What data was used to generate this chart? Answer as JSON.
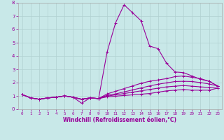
{
  "xlabel": "Windchill (Refroidissement éolien,°C)",
  "ylabel": "",
  "xlim": [
    -0.5,
    23.5
  ],
  "ylim": [
    0,
    8
  ],
  "xticks": [
    0,
    1,
    2,
    3,
    4,
    5,
    6,
    7,
    8,
    9,
    10,
    11,
    12,
    13,
    14,
    15,
    16,
    17,
    18,
    19,
    20,
    21,
    22,
    23
  ],
  "yticks": [
    0,
    1,
    2,
    3,
    4,
    5,
    6,
    7,
    8
  ],
  "bg_color": "#c8e8e8",
  "line_color": "#990099",
  "grid_color": "#b0d0d0",
  "lines": [
    [
      1.1,
      0.85,
      0.75,
      0.85,
      0.9,
      1.0,
      0.9,
      0.45,
      0.85,
      0.8,
      4.3,
      6.5,
      7.85,
      7.25,
      6.65,
      4.75,
      4.55,
      3.45,
      2.8,
      2.75,
      2.5,
      2.25,
      2.1,
      1.75
    ],
    [
      1.1,
      0.85,
      0.75,
      0.85,
      0.9,
      1.0,
      0.9,
      0.75,
      0.85,
      0.8,
      1.15,
      1.35,
      1.55,
      1.75,
      1.95,
      2.1,
      2.2,
      2.3,
      2.45,
      2.5,
      2.4,
      2.3,
      2.1,
      1.75
    ],
    [
      1.1,
      0.85,
      0.75,
      0.85,
      0.9,
      1.0,
      0.9,
      0.75,
      0.85,
      0.8,
      1.05,
      1.15,
      1.3,
      1.45,
      1.6,
      1.75,
      1.88,
      1.98,
      2.08,
      2.1,
      2.08,
      2.0,
      1.9,
      1.75
    ],
    [
      1.1,
      0.85,
      0.75,
      0.85,
      0.9,
      1.0,
      0.9,
      0.75,
      0.85,
      0.8,
      0.98,
      1.08,
      1.18,
      1.28,
      1.38,
      1.48,
      1.58,
      1.68,
      1.73,
      1.78,
      1.73,
      1.68,
      1.63,
      1.58
    ],
    [
      1.1,
      0.85,
      0.75,
      0.85,
      0.9,
      1.0,
      0.9,
      0.75,
      0.85,
      0.8,
      0.93,
      0.98,
      1.03,
      1.08,
      1.13,
      1.18,
      1.28,
      1.38,
      1.43,
      1.48,
      1.43,
      1.43,
      1.43,
      1.58
    ]
  ]
}
